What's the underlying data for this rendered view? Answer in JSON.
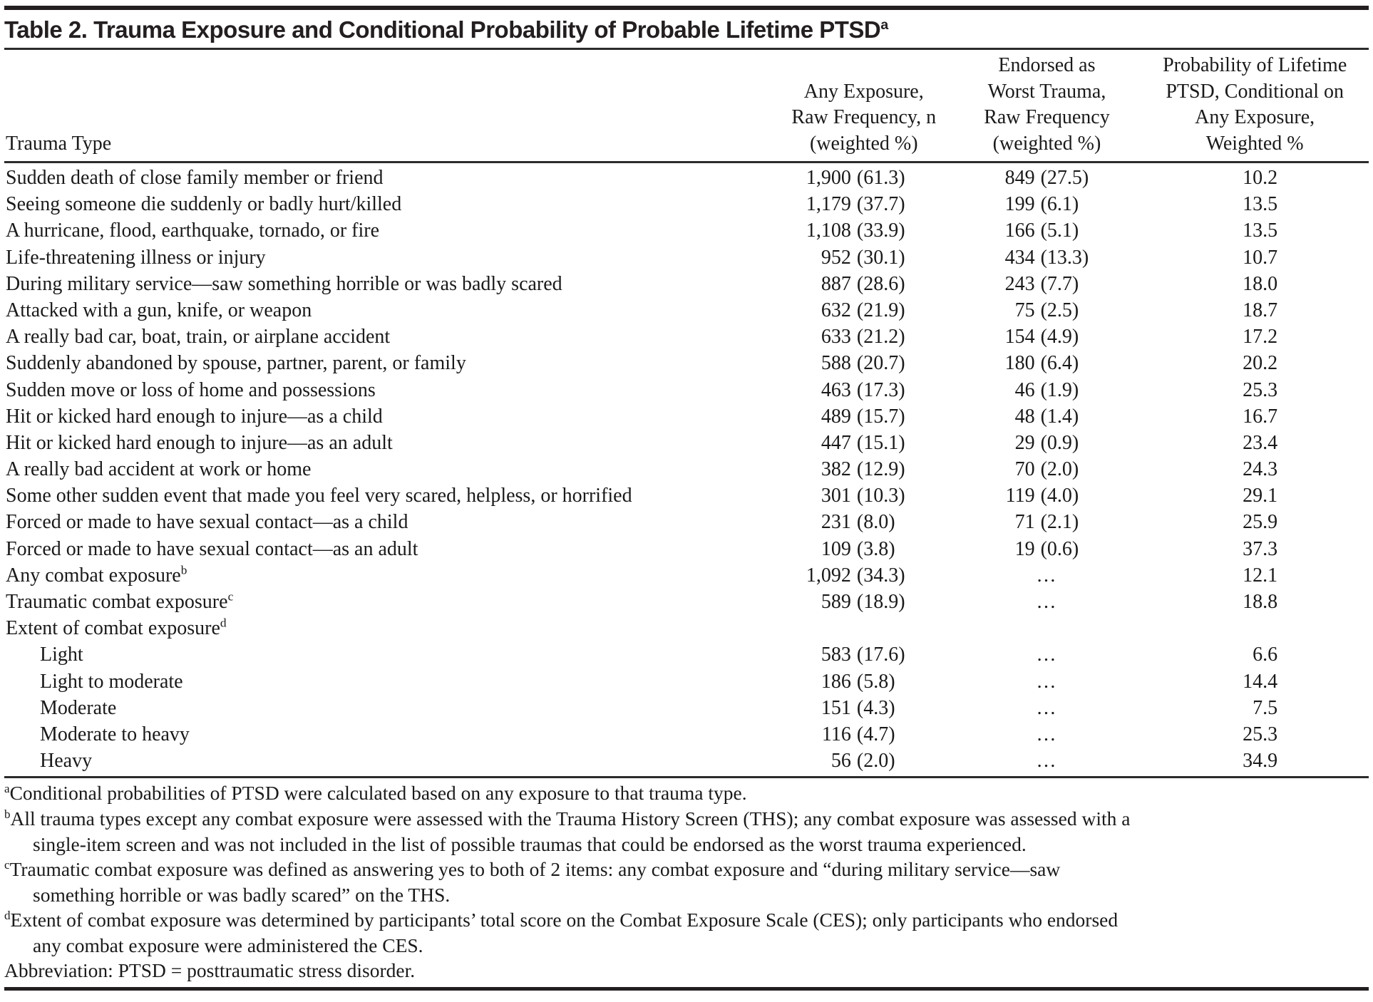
{
  "title": {
    "text": "Table 2. Trauma Exposure and Conditional Probability of Probable Lifetime PTSD",
    "sup": "a"
  },
  "table": {
    "headers": {
      "trauma_type": "Trauma Type",
      "exposure_lines": [
        "Any Exposure,",
        "Raw Frequency, n",
        "(weighted %)"
      ],
      "worst_lines": [
        "Endorsed as",
        "Worst Trauma,",
        "Raw Frequency",
        "(weighted %)"
      ],
      "prob_lines": [
        "Probability of Lifetime",
        "PTSD, Conditional on",
        "Any Exposure,",
        "Weighted %"
      ]
    },
    "rows": [
      {
        "label": "Sudden death of close family member or friend",
        "n": "1,900",
        "npct": "(61.3)",
        "wn": "849",
        "wpct": "(27.5)",
        "prob": "10.2"
      },
      {
        "label": "Seeing someone die suddenly or badly hurt/killed",
        "n": "1,179",
        "npct": "(37.7)",
        "wn": "199",
        "wpct": "(6.1)",
        "prob": "13.5"
      },
      {
        "label": "A hurricane, flood, earthquake, tornado, or fire",
        "n": "1,108",
        "npct": "(33.9)",
        "wn": "166",
        "wpct": "(5.1)",
        "prob": "13.5"
      },
      {
        "label": "Life-threatening illness or injury",
        "n": "952",
        "npct": "(30.1)",
        "wn": "434",
        "wpct": "(13.3)",
        "prob": "10.7"
      },
      {
        "label": "During military service—saw something horrible or was badly scared",
        "n": "887",
        "npct": "(28.6)",
        "wn": "243",
        "wpct": "(7.7)",
        "prob": "18.0"
      },
      {
        "label": "Attacked with a gun, knife, or weapon",
        "n": "632",
        "npct": "(21.9)",
        "wn": "75",
        "wpct": "(2.5)",
        "prob": "18.7"
      },
      {
        "label": "A really bad car, boat, train, or airplane accident",
        "n": "633",
        "npct": "(21.2)",
        "wn": "154",
        "wpct": "(4.9)",
        "prob": "17.2"
      },
      {
        "label": "Suddenly abandoned by spouse, partner, parent, or family",
        "n": "588",
        "npct": "(20.7)",
        "wn": "180",
        "wpct": "(6.4)",
        "prob": "20.2"
      },
      {
        "label": "Sudden move or loss of home and possessions",
        "n": "463",
        "npct": "(17.3)",
        "wn": "46",
        "wpct": "(1.9)",
        "prob": "25.3"
      },
      {
        "label": "Hit or kicked hard enough to injure—as a child",
        "n": "489",
        "npct": "(15.7)",
        "wn": "48",
        "wpct": "(1.4)",
        "prob": "16.7"
      },
      {
        "label": "Hit or kicked hard enough to injure—as an adult",
        "n": "447",
        "npct": "(15.1)",
        "wn": "29",
        "wpct": "(0.9)",
        "prob": "23.4"
      },
      {
        "label": "A really bad accident at work or home",
        "n": "382",
        "npct": "(12.9)",
        "wn": "70",
        "wpct": "(2.0)",
        "prob": "24.3"
      },
      {
        "label": "Some other sudden event that made you feel very scared, helpless, or horrified",
        "n": "301",
        "npct": "(10.3)",
        "wn": "119",
        "wpct": "(4.0)",
        "prob": "29.1"
      },
      {
        "label": "Forced or made to have sexual contact—as a child",
        "n": "231",
        "npct": "(8.0)",
        "wn": "71",
        "wpct": "(2.1)",
        "prob": "25.9"
      },
      {
        "label": "Forced or made to have sexual contact—as an adult",
        "n": "109",
        "npct": "(3.8)",
        "wn": "19",
        "wpct": "(0.6)",
        "prob": "37.3"
      },
      {
        "label": "Any combat exposure",
        "sup": "b",
        "n": "1,092",
        "npct": "(34.3)",
        "wn": "…",
        "prob": "12.1"
      },
      {
        "label": "Traumatic combat exposure",
        "sup": "c",
        "n": "589",
        "npct": "(18.9)",
        "wn": "…",
        "prob": "18.8"
      },
      {
        "label": "Extent of combat exposure",
        "sup": "d"
      },
      {
        "label": "Light",
        "indent": true,
        "n": "583",
        "npct": "(17.6)",
        "wn": "…",
        "prob": "6.6"
      },
      {
        "label": "Light to moderate",
        "indent": true,
        "n": "186",
        "npct": "(5.8)",
        "wn": "…",
        "prob": "14.4"
      },
      {
        "label": "Moderate",
        "indent": true,
        "n": "151",
        "npct": "(4.3)",
        "wn": "…",
        "prob": "7.5"
      },
      {
        "label": "Moderate to heavy",
        "indent": true,
        "n": "116",
        "npct": "(4.7)",
        "wn": "…",
        "prob": "25.3"
      },
      {
        "label": "Heavy",
        "indent": true,
        "n": "56",
        "npct": "(2.0)",
        "wn": "…",
        "prob": "34.9"
      }
    ]
  },
  "footnotes": [
    {
      "marker": "a",
      "lines": [
        "Conditional probabilities of PTSD were calculated based on any exposure to that trauma type."
      ]
    },
    {
      "marker": "b",
      "lines": [
        "All trauma types except any combat exposure were assessed with the Trauma History Screen (THS); any combat exposure was assessed with a",
        "single-item screen and was not included in the list of possible traumas that could be endorsed as the worst trauma experienced."
      ]
    },
    {
      "marker": "c",
      "lines": [
        "Traumatic combat exposure was defined as answering yes to both of 2 items: any combat exposure and “during military service—saw",
        "something horrible or was badly scared” on the THS."
      ]
    },
    {
      "marker": "d",
      "lines": [
        "Extent of combat exposure was determined by participants’ total score on the Combat Exposure Scale (CES); only participants who endorsed",
        "any combat exposure were administered the CES."
      ]
    }
  ],
  "abbreviation": "Abbreviation: PTSD = posttraumatic stress disorder."
}
